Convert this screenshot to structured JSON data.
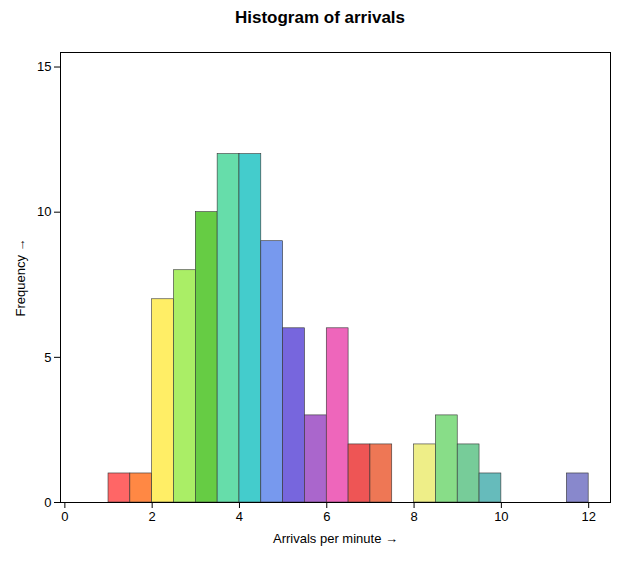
{
  "chart_data": {
    "type": "histogram",
    "title": "Histogram of arrivals",
    "xlabel": "Arrivals per minute",
    "ylabel": "Frequency",
    "x": [
      1.0,
      1.5,
      2.0,
      2.5,
      3.0,
      3.5,
      4.0,
      4.5,
      5.0,
      5.5,
      6.0,
      6.5,
      7.0,
      8.0,
      8.5,
      9.0,
      9.5,
      11.5
    ],
    "bin_width": 0.5,
    "values": [
      1,
      1,
      7,
      8,
      10,
      12,
      12,
      9,
      6,
      3,
      6,
      2,
      2,
      2,
      3,
      2,
      1,
      1
    ],
    "colors": [
      "#FF6666",
      "#FF8844",
      "#FFEE66",
      "#AAEE66",
      "#66CC44",
      "#66DDAA",
      "#44CCCC",
      "#7799EE",
      "#7766DD",
      "#AA66CC",
      "#EE66BB",
      "#EE5555",
      "#EE7755",
      "#EEEE88",
      "#88DD88",
      "#77CC99",
      "#66BBBB",
      "#8888CC"
    ],
    "xlim": [
      -0.1,
      12.5
    ],
    "ylim": [
      0,
      15.5
    ],
    "xticks": [
      0,
      2,
      4,
      6,
      8,
      10,
      12
    ],
    "yticks": [
      0,
      5,
      10,
      15
    ],
    "grid": false
  }
}
